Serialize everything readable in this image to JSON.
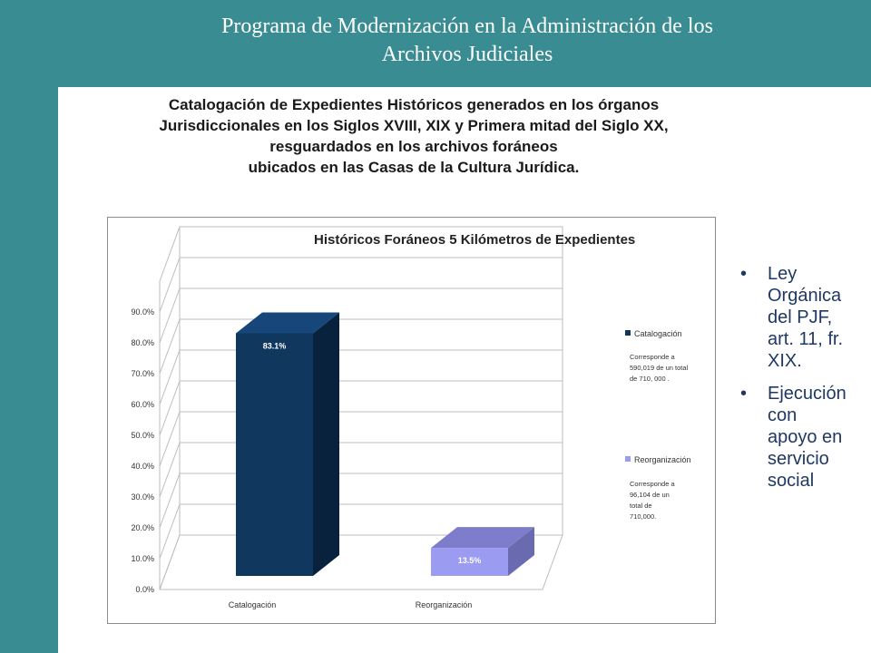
{
  "slide": {
    "title_line1": "Programa de Modernización en la Administración de los",
    "title_line2": "Archivos Judiciales",
    "subtitle_lines": [
      "Catalogación de Expedientes Históricos generados en los órganos",
      "Jurisdiccionales en los Siglos XVIII, XIX y Primera mitad del Siglo XX,",
      "resguardados en los archivos foráneos",
      "ubicados en las Casas de la Cultura Jurídica."
    ],
    "bullets": [
      {
        "marker": "•",
        "text": [
          "Ley",
          "Orgánica",
          "del PJF,",
          "art. 11, fr.",
          "XIX."
        ]
      },
      {
        "marker": "•",
        "text": [
          "Ejecución",
          "con",
          "apoyo en",
          "servicio",
          "social"
        ]
      }
    ]
  },
  "chart_data": {
    "type": "bar",
    "title": "Históricos Foráneos 5  Kilómetros de Expedientes",
    "categories": [
      "Catalogación",
      "Reorganización"
    ],
    "values": [
      83.1,
      13.5
    ],
    "data_labels": [
      "83.1%",
      "13.5%"
    ],
    "yticks": [
      "0.0%",
      "10.0%",
      "20.0%",
      "30.0%",
      "40.0%",
      "50.0%",
      "60.0%",
      "70.0%",
      "80.0%",
      "90.0%"
    ],
    "ylim": [
      0,
      100
    ],
    "grid": true,
    "legend_position": "right",
    "legend": [
      {
        "label": "Catalogación",
        "note": [
          "Corresponde a",
          "590,019 de un total",
          "de 710, 000 ."
        ]
      },
      {
        "label": "Reorganización",
        "note": [
          "Corresponde a",
          "96,104 de un",
          "total de",
          "710,000."
        ]
      }
    ],
    "colors": {
      "bar1_front": "#10375e",
      "bar1_side": "#08213d",
      "bar1_top": "#16467a",
      "bar2_front": "#9b9bf2",
      "bar2_side": "#6a6ab0",
      "bar2_top": "#7d7dcc",
      "grid": "#bdbdbd",
      "text": "#333333",
      "data_label": "#ffffff"
    }
  }
}
